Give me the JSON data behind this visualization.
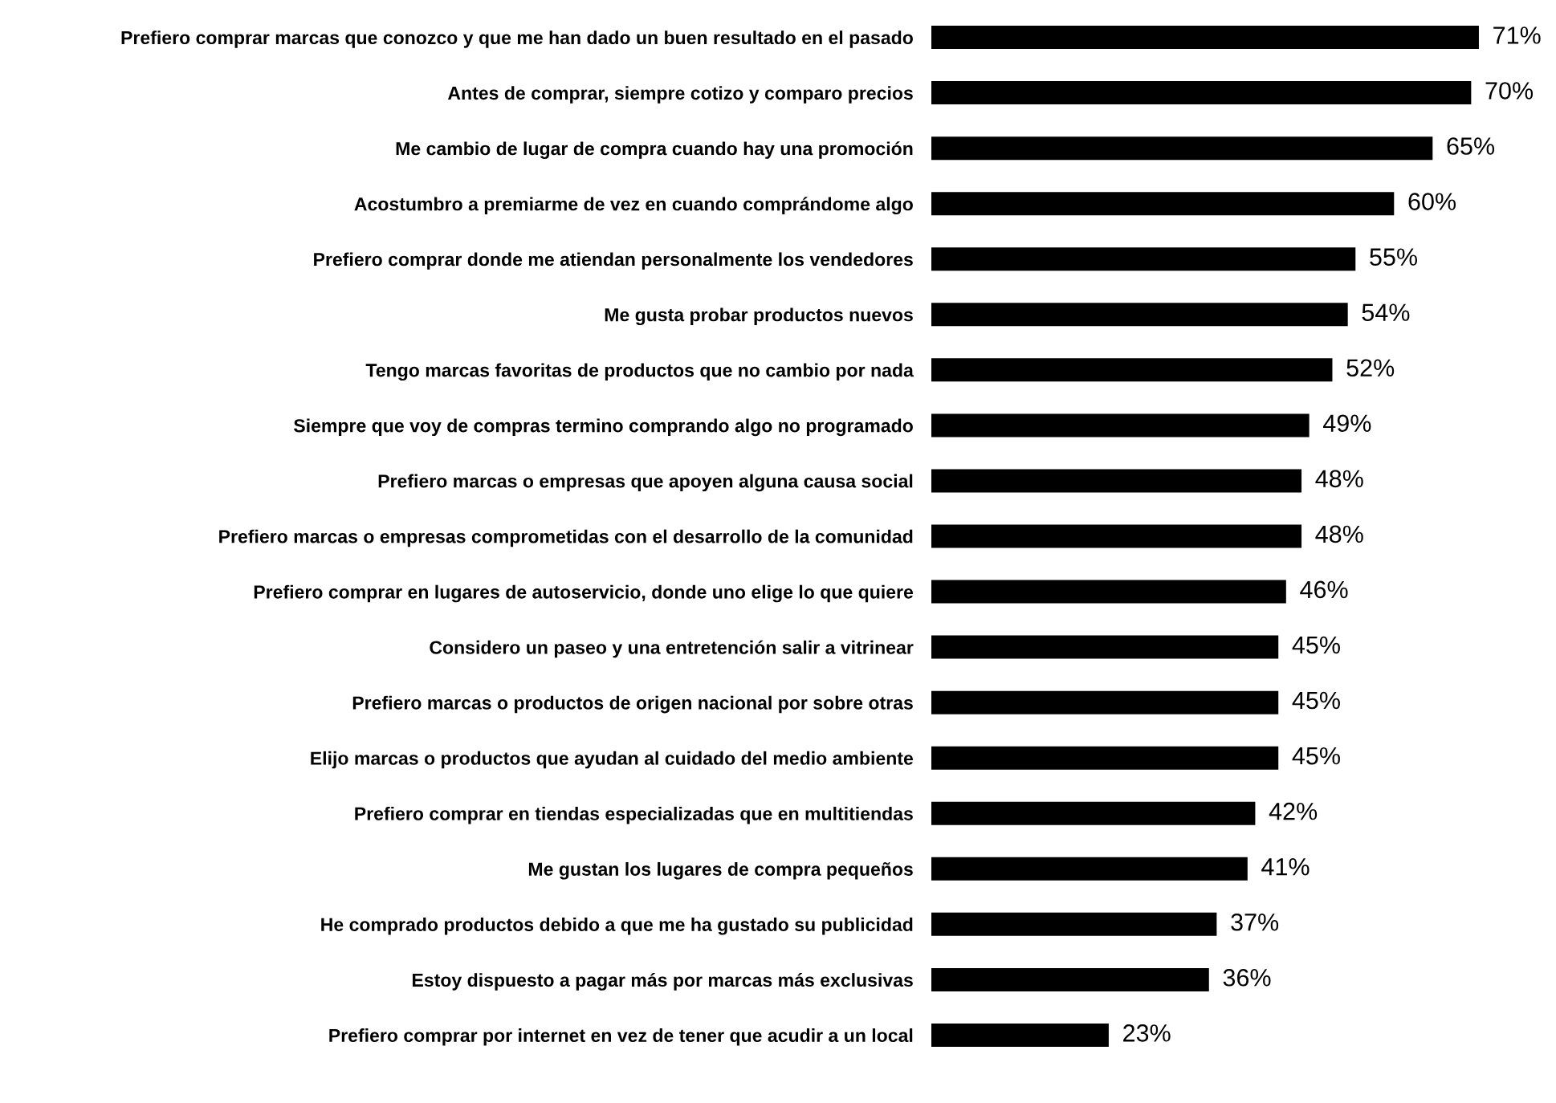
{
  "chart_data": {
    "type": "bar",
    "orientation": "horizontal",
    "color": "#000000",
    "categories": [
      "Prefiero comprar marcas que conozco y que me han dado un buen resultado en el pasado",
      "Antes de comprar, siempre cotizo y comparo precios",
      "Me cambio de lugar de compra cuando hay una promoción",
      "Acostumbro a premiarme de vez en cuando comprándome algo",
      "Prefiero comprar donde me atiendan personalmente los vendedores",
      "Me gusta probar productos nuevos",
      "Tengo marcas favoritas de productos que no cambio por nada",
      "Siempre que voy de compras termino comprando algo no programado",
      "Prefiero marcas o empresas que apoyen alguna causa social",
      "Prefiero marcas o empresas comprometidas con el desarrollo de la comunidad",
      "Prefiero comprar en lugares de autoservicio, donde uno elige lo que quiere",
      "Considero un paseo y una entretención salir a vitrinear",
      "Prefiero marcas o productos de origen nacional por sobre otras",
      "Elijo marcas o productos que ayudan al cuidado del medio ambiente",
      "Prefiero comprar en tiendas especializadas que en multitiendas",
      "Me gustan los lugares de compra pequeños",
      "He comprado productos debido a que me ha gustado su publicidad",
      "Estoy dispuesto a pagar más por marcas más exclusivas",
      "Prefiero comprar por internet en vez de tener que acudir a un local"
    ],
    "values": [
      71,
      70,
      65,
      60,
      55,
      54,
      52,
      49,
      48,
      48,
      46,
      45,
      45,
      45,
      42,
      41,
      37,
      36,
      23
    ],
    "value_labels": [
      "71%",
      "70%",
      "65%",
      "60%",
      "55%",
      "54%",
      "52%",
      "49%",
      "48%",
      "48%",
      "46%",
      "45%",
      "45%",
      "45%",
      "42%",
      "41%",
      "37%",
      "36%",
      "23%"
    ],
    "grid": false,
    "legend": false
  }
}
